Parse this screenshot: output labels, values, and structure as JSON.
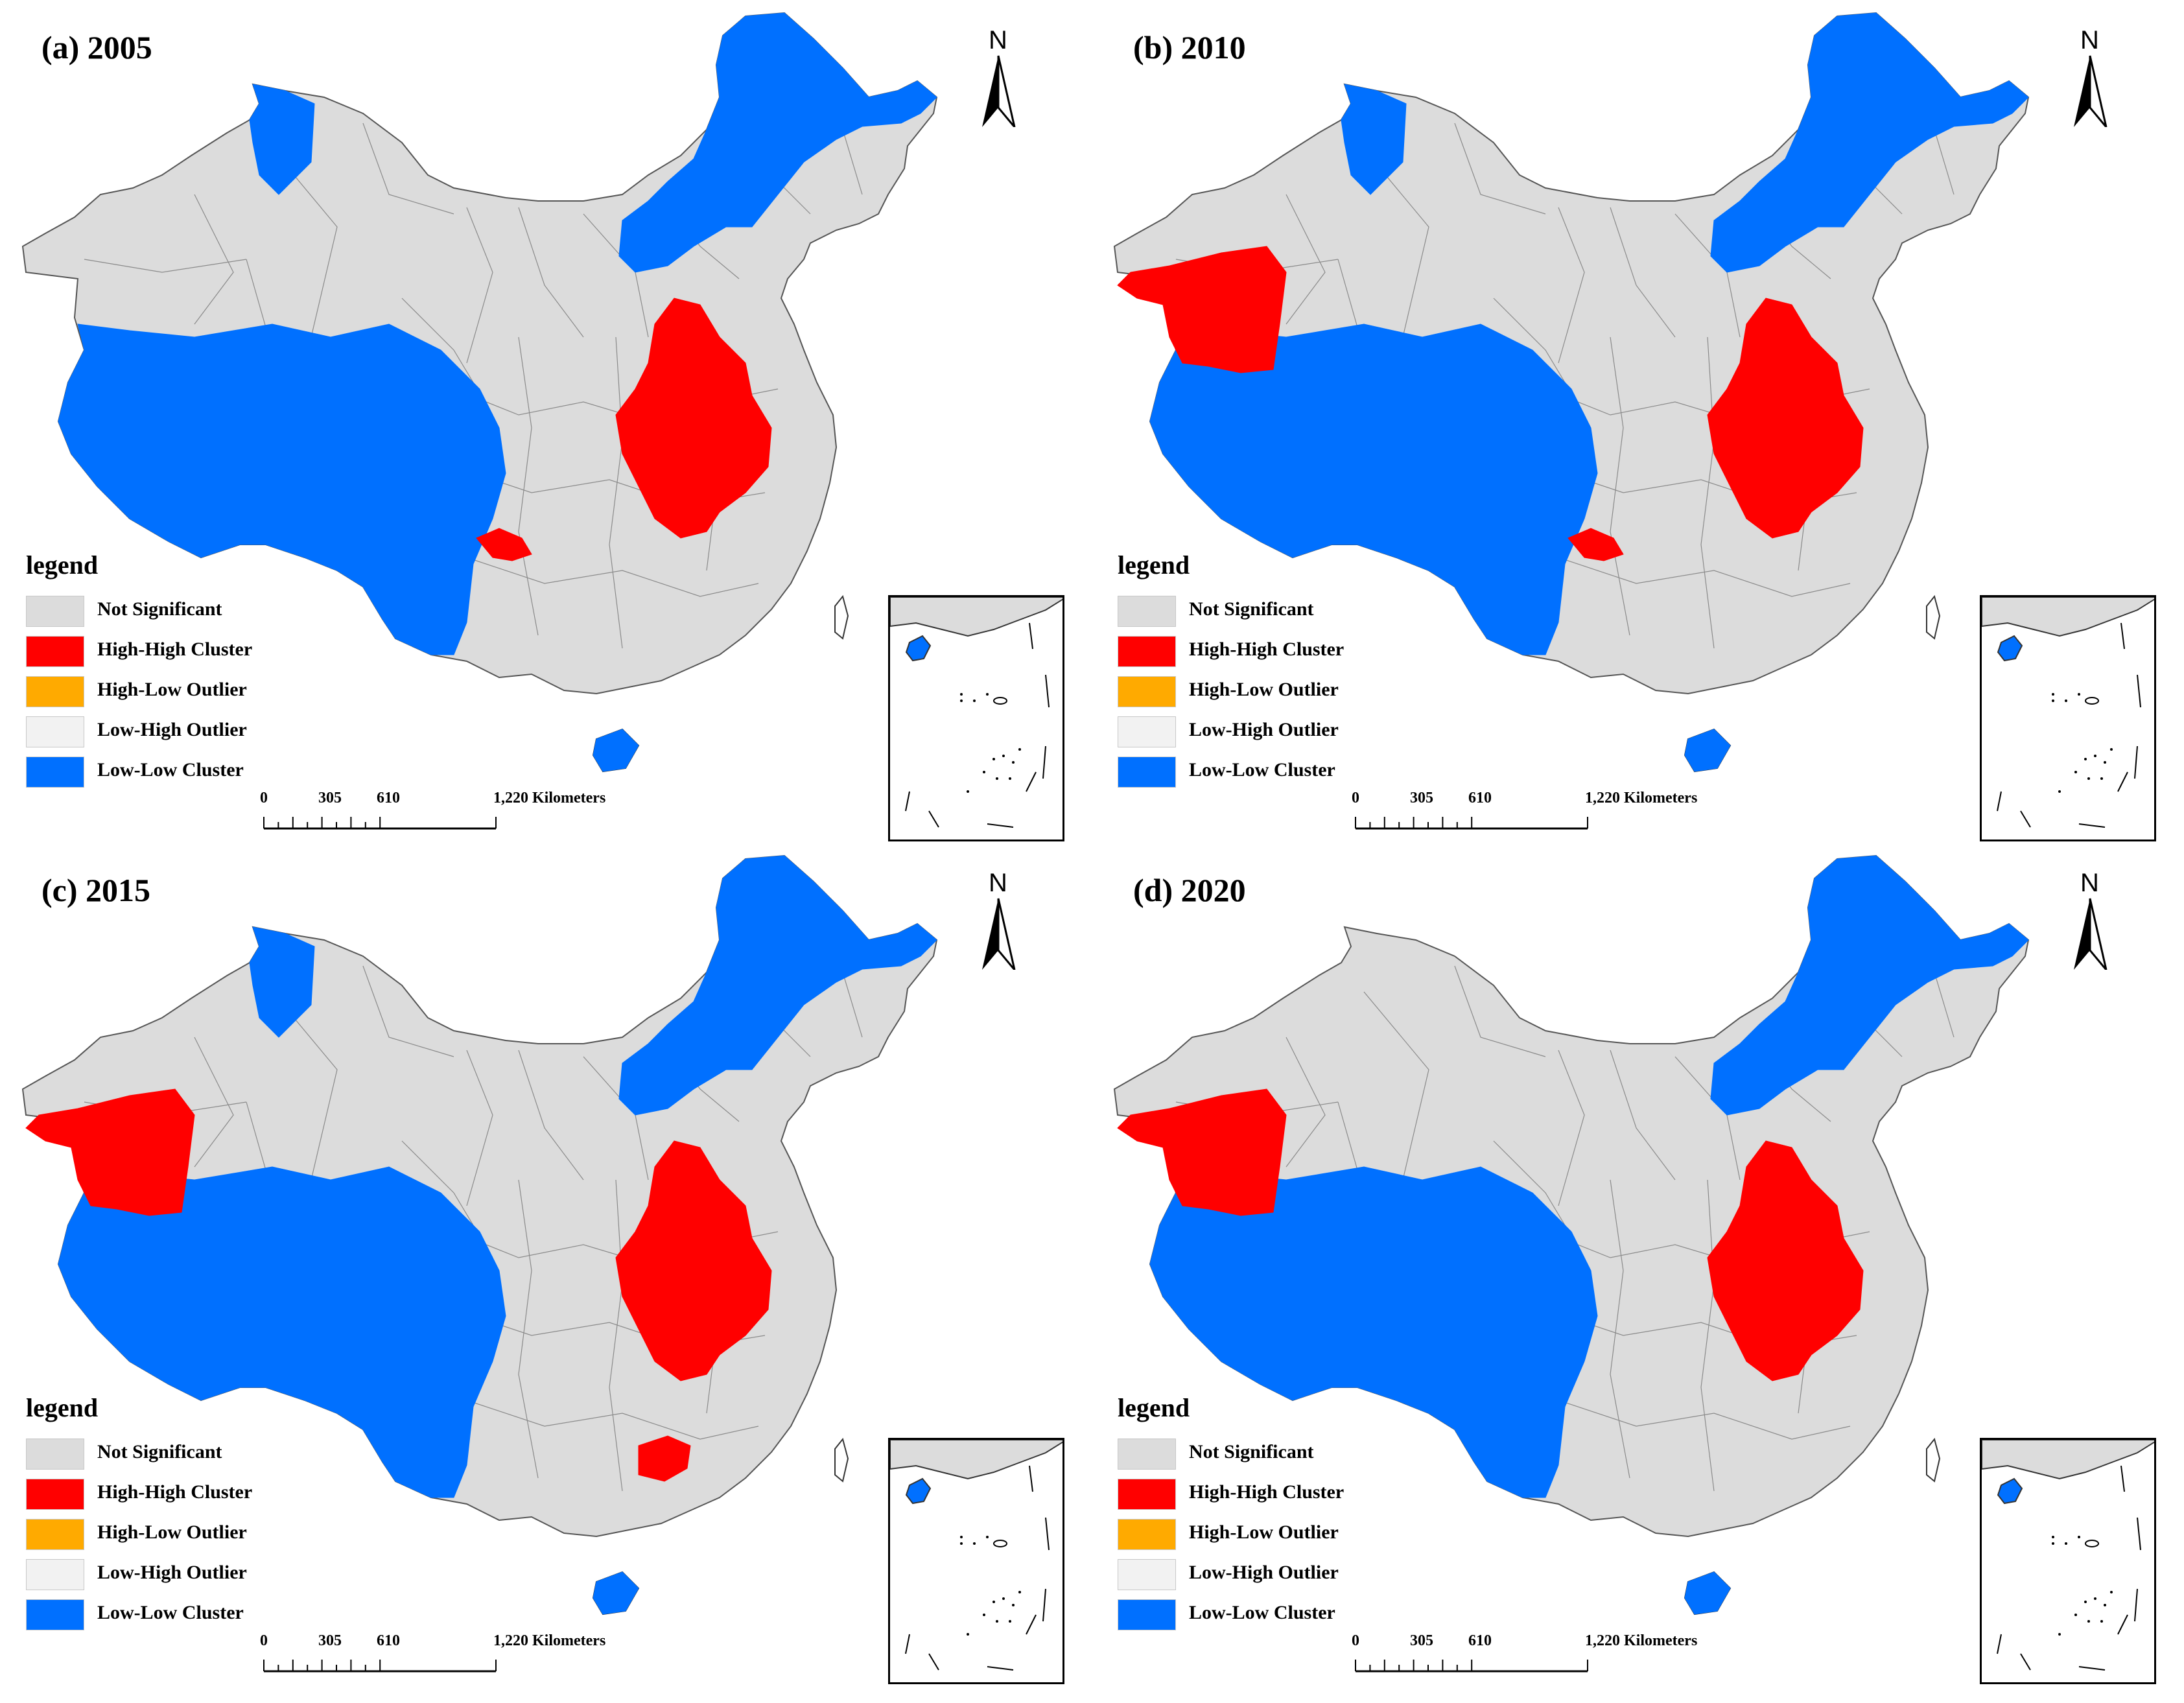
{
  "colors": {
    "not_significant": "#dcdcdc",
    "high_high": "#ff0000",
    "high_low": "#ffaa00",
    "low_high": "#f2f2f2",
    "low_low": "#0070ff",
    "boundary": "#8a8a8a"
  },
  "legend": {
    "title": "legend",
    "items": [
      {
        "label": "Not Significant",
        "color": "#dcdcdc",
        "icon": "not-significant-swatch"
      },
      {
        "label": "High-High Cluster",
        "color": "#ff0000",
        "icon": "high-high-swatch"
      },
      {
        "label": "High-Low Outlier",
        "color": "#ffaa00",
        "icon": "high-low-swatch"
      },
      {
        "label": "Low-High Outlier",
        "color": "#f2f2f2",
        "icon": "low-high-swatch"
      },
      {
        "label": "Low-Low Cluster",
        "color": "#0070ff",
        "icon": "low-low-swatch"
      }
    ]
  },
  "north_arrow": {
    "letter": "N",
    "icon": "north-arrow-icon"
  },
  "scale_bar": {
    "labels": [
      "0",
      "305",
      "610",
      "1,220 Kilometers"
    ]
  },
  "panels": [
    {
      "id": "a",
      "title": "(a) 2005",
      "clusters": {
        "high_high": [
          "north-china-plain",
          "chongqing"
        ],
        "low_low": [
          "tibet-qinghai",
          "inner-mongolia-northeast",
          "altay",
          "hainan"
        ]
      }
    },
    {
      "id": "b",
      "title": "(b) 2010",
      "clusters": {
        "high_high": [
          "north-china-plain",
          "chongqing",
          "south-xinjiang"
        ],
        "low_low": [
          "tibet-qinghai",
          "inner-mongolia-northeast",
          "altay",
          "hainan"
        ]
      }
    },
    {
      "id": "c",
      "title": "(c) 2015",
      "clusters": {
        "high_high": [
          "north-china-plain",
          "hubei-central",
          "south-xinjiang"
        ],
        "low_low": [
          "tibet-qinghai",
          "inner-mongolia-northeast",
          "altay",
          "hainan"
        ]
      }
    },
    {
      "id": "d",
      "title": "(d) 2020",
      "clusters": {
        "high_high": [
          "north-china-plain",
          "south-xinjiang"
        ],
        "low_low": [
          "tibet-qinghai",
          "inner-mongolia-northeast",
          "hainan"
        ]
      }
    }
  ]
}
